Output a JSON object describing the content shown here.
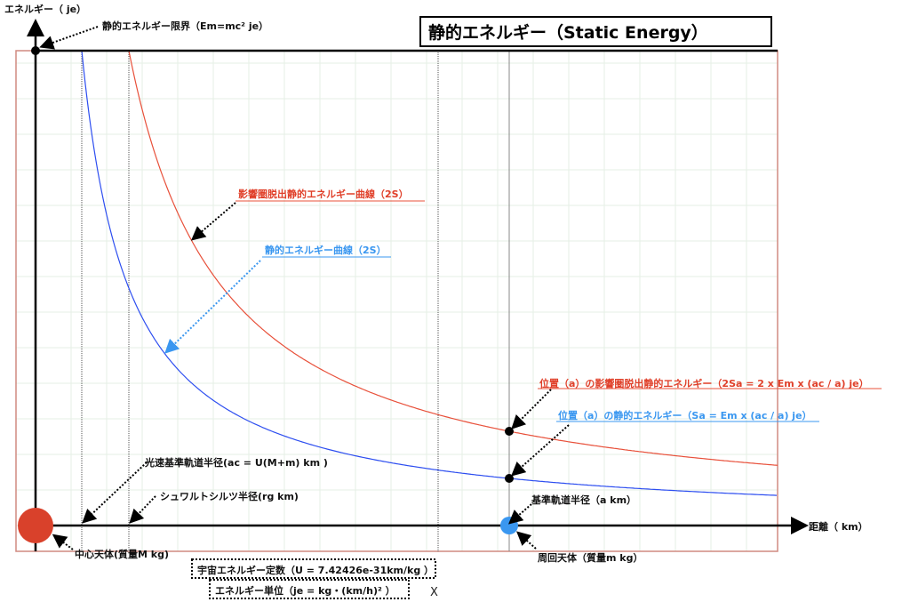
{
  "title": "静的エネルギー（Static Energy）",
  "axes": {
    "y_label": "エネルギー（ je）",
    "x_label": "距離（ km）"
  },
  "labels": {
    "energy_limit": "静的エネルギー限界（Em=mc² je）",
    "escape_curve": "影響圏脱出静的エネルギー曲線（2S）",
    "static_curve": "静的エネルギー曲線（2S）",
    "escape_at_a": "位置（a）の影響圏脱出静的エネルギー（2Sa = 2 x Em x (ac / a) je）",
    "static_at_a": "位置（a）の静的エネルギー（Sa = Em x (ac / a) je）",
    "light_speed_radius": "光速基準軌道半径(ac = U(M+m) km )",
    "schwarzschild_radius": "シュワルトシルツ半径(rg km)",
    "reference_orbit_radius": "基準軌道半径（a km）",
    "central_body": "中心天体(質量M kg)",
    "orbiting_body": "周回天体（質量m kg）",
    "universal_constant": "宇宙エネルギー定数（U = 7.42426e-31km/kg ）",
    "energy_unit": "エネルギー単位（je = kg・(km/h)² ）",
    "stray_mark": "X"
  },
  "colors": {
    "static_curve": "#2d4ef0",
    "escape_curve": "#e8503a",
    "central_body": "#d9412b",
    "orbiting_body": "#3a97f0",
    "frame": "#d08a80",
    "grid": "#e6efe6"
  }
}
